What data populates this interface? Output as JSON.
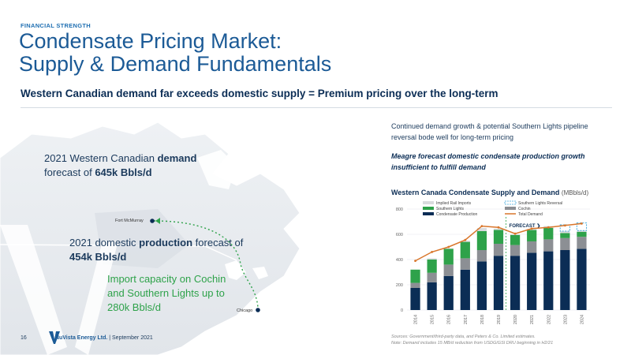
{
  "header": {
    "kicker": "FINANCIAL STRENGTH",
    "title_line1": "Condensate Pricing Market:",
    "title_line2": "Supply & Demand Fundamentals",
    "subtitle": "Western Canadian demand far exceeds domestic supply = Premium pricing over the long-term"
  },
  "map": {
    "callout_demand": {
      "pre": "2021 Western Canadian ",
      "bold1": "demand",
      "mid": " forecast of ",
      "bold2": "645k Bbls/d"
    },
    "callout_production": {
      "pre": "2021 domestic ",
      "bold1": "production",
      "mid": " forecast of ",
      "bold2": "454k Bbls/d"
    },
    "callout_import": "Import capacity on Cochin and Southern Lights up to 280k Bbls/d",
    "city_fort": "Fort McMurray",
    "city_chicago": "Chicago"
  },
  "right": {
    "text1": "Continued demand growth & potential Southern Lights pipeline reversal bode well for long-term pricing",
    "text2": "Meagre forecast domestic condensate production growth insufficient to fulfill demand",
    "chart_title": "Western Canada Condensate Supply and Demand",
    "chart_unit": "(MBbls/d)"
  },
  "chart_data": {
    "type": "bar",
    "stacked": true,
    "categories": [
      "2014",
      "2015",
      "2016",
      "2017",
      "2018",
      "2019",
      "2020",
      "2021",
      "2022",
      "2023",
      "2024"
    ],
    "ylim": [
      0,
      800
    ],
    "yticks": [
      0,
      200,
      400,
      600,
      800
    ],
    "forecast_label": "FORECAST ❯",
    "forecast_start_index": 6,
    "series": [
      {
        "name": "Condensate Production",
        "color": "#0b2d55",
        "values": [
          175,
          220,
          270,
          320,
          385,
          430,
          430,
          454,
          465,
          475,
          485
        ]
      },
      {
        "name": "Cochin",
        "color": "#8c8f94",
        "values": [
          40,
          75,
          90,
          90,
          90,
          95,
          85,
          90,
          95,
          95,
          95
        ]
      },
      {
        "name": "Southern Lights",
        "color": "#2ea24a",
        "values": [
          105,
          105,
          125,
          130,
          150,
          110,
          80,
          90,
          90,
          40,
          40
        ]
      },
      {
        "name": "Implied Rail Imports",
        "color": "#d9dbde",
        "values": [
          0,
          10,
          5,
          10,
          25,
          10,
          5,
          10,
          15,
          15,
          10
        ]
      },
      {
        "name": "Southern Lights Reversal",
        "color": "#3fa9dc",
        "values": [
          0,
          0,
          0,
          0,
          0,
          0,
          0,
          0,
          0,
          50,
          60
        ]
      }
    ],
    "line": {
      "name": "Total Demand",
      "color": "#d9762b",
      "values": [
        390,
        460,
        500,
        555,
        665,
        655,
        605,
        645,
        655,
        670,
        685
      ]
    },
    "legend": [
      "Implied Rail Imports",
      "Southern Lights Reversal",
      "Southern Lights",
      "Cochin",
      "Condensate Production",
      "Total Demand"
    ]
  },
  "sources_line1": "Sources: Government/third-party data, and Peters & Co. Limited estimates.",
  "sources_line2": "Note: Demand includes 15 MB/d reduction from USDG/GSI DRU beginning in H2/21",
  "footer": {
    "page": "16",
    "company": "NuVista Energy Ltd.",
    "date": " | September 2021"
  },
  "colors": {
    "brand_blue": "#1b5a96",
    "navy": "#0b2d55",
    "green": "#2ea24a",
    "orange": "#d9762b"
  }
}
